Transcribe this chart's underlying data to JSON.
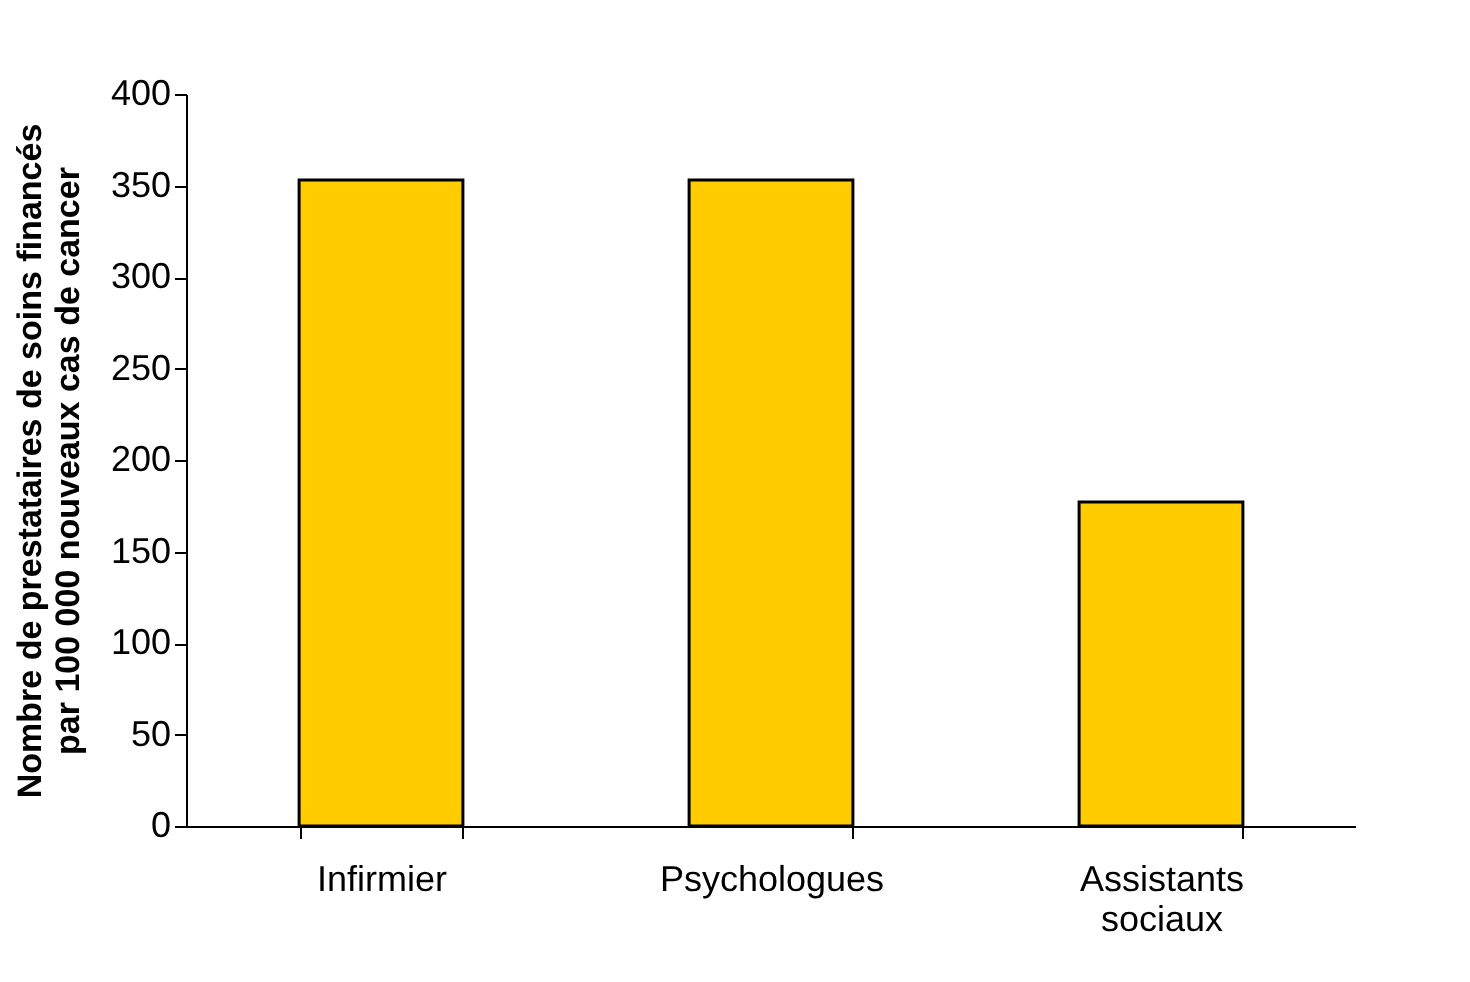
{
  "chart_data": {
    "type": "bar",
    "ylabel": "Nombre de prestataires de soins financés\npar 100 000 nouveaux cas de cancer",
    "categories": [
      "Infirmier",
      "Psychologues",
      "Assistants sociaux"
    ],
    "values": [
      353,
      353,
      177
    ],
    "color": "#ffcc00",
    "ylim": [
      0,
      400
    ],
    "yticks": [
      0,
      50,
      100,
      150,
      200,
      250,
      300,
      350,
      400
    ],
    "grid": false
  }
}
